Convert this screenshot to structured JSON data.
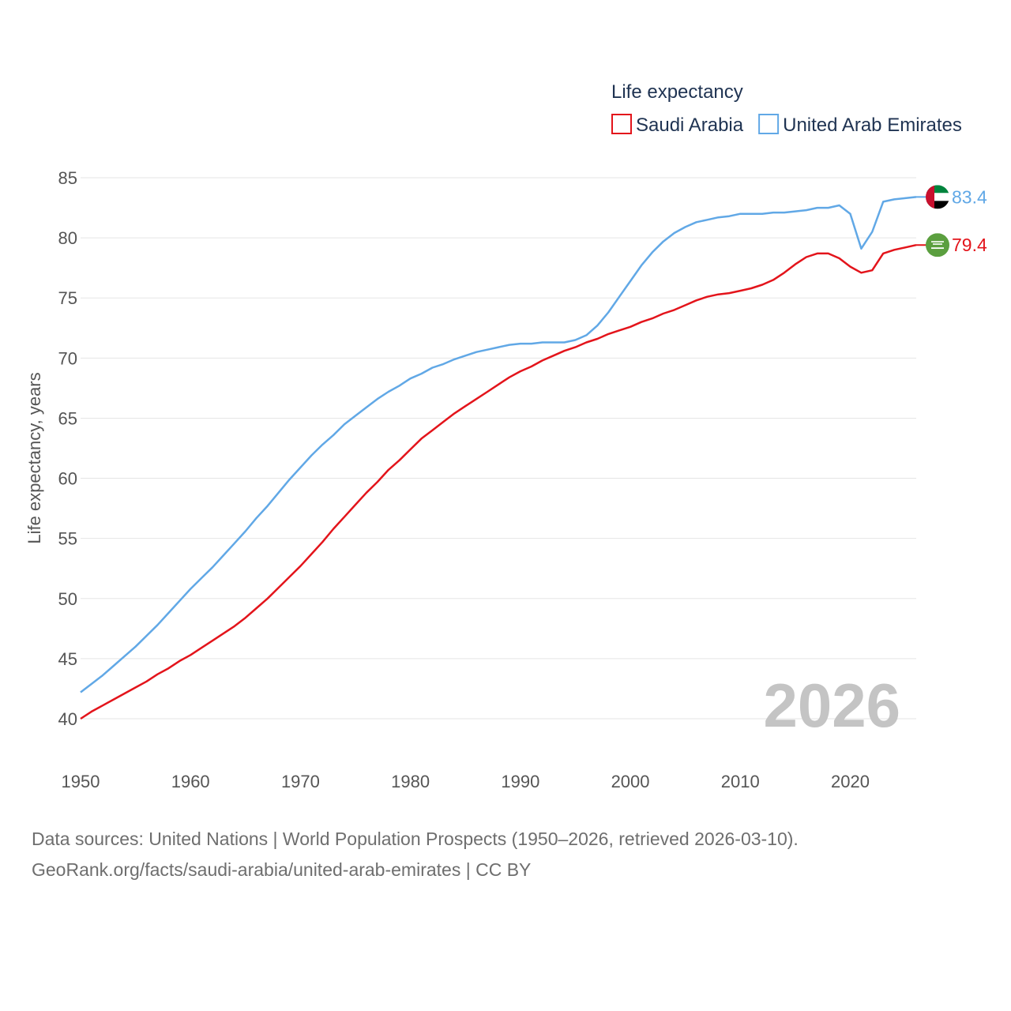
{
  "chart_data": {
    "type": "line",
    "title": "Life expectancy",
    "xlabel": "",
    "ylabel": "Life expectancy, years",
    "xlim": [
      1950,
      2026
    ],
    "ylim": [
      40,
      85
    ],
    "x_ticks": [
      "1950",
      "1960",
      "1970",
      "1980",
      "1990",
      "2000",
      "2010",
      "2020"
    ],
    "y_ticks": [
      "40",
      "45",
      "50",
      "55",
      "60",
      "65",
      "70",
      "75",
      "80",
      "85"
    ],
    "current_year": "2026",
    "legend_position": "top-right",
    "series": [
      {
        "name": "Saudi Arabia",
        "color": "#e3141b",
        "end_label": "79.4",
        "flag_icon": "saudi-arabia-flag-icon",
        "x": [
          1950,
          1951,
          1952,
          1953,
          1954,
          1955,
          1956,
          1957,
          1958,
          1959,
          1960,
          1961,
          1962,
          1963,
          1964,
          1965,
          1966,
          1967,
          1968,
          1969,
          1970,
          1971,
          1972,
          1973,
          1974,
          1975,
          1976,
          1977,
          1978,
          1979,
          1980,
          1981,
          1982,
          1983,
          1984,
          1985,
          1986,
          1987,
          1988,
          1989,
          1990,
          1991,
          1992,
          1993,
          1994,
          1995,
          1996,
          1997,
          1998,
          1999,
          2000,
          2001,
          2002,
          2003,
          2004,
          2005,
          2006,
          2007,
          2008,
          2009,
          2010,
          2011,
          2012,
          2013,
          2014,
          2015,
          2016,
          2017,
          2018,
          2019,
          2020,
          2021,
          2022,
          2023,
          2024,
          2025,
          2026
        ],
        "values": [
          40.0,
          40.6,
          41.1,
          41.6,
          42.1,
          42.6,
          43.1,
          43.7,
          44.2,
          44.8,
          45.3,
          45.9,
          46.5,
          47.1,
          47.7,
          48.4,
          49.2,
          50.0,
          50.9,
          51.8,
          52.7,
          53.7,
          54.7,
          55.8,
          56.8,
          57.8,
          58.8,
          59.7,
          60.7,
          61.5,
          62.4,
          63.3,
          64.0,
          64.7,
          65.4,
          66.0,
          66.6,
          67.2,
          67.8,
          68.4,
          68.9,
          69.3,
          69.8,
          70.2,
          70.6,
          70.9,
          71.3,
          71.6,
          72.0,
          72.3,
          72.6,
          73.0,
          73.3,
          73.7,
          74.0,
          74.4,
          74.8,
          75.1,
          75.3,
          75.4,
          75.6,
          75.8,
          76.1,
          76.5,
          77.1,
          77.8,
          78.4,
          78.7,
          78.7,
          78.3,
          77.6,
          77.1,
          77.3,
          78.7,
          79.0,
          79.2,
          79.4
        ]
      },
      {
        "name": "United Arab Emirates",
        "color": "#61a8e6",
        "end_label": "83.4",
        "flag_icon": "uae-flag-icon",
        "x": [
          1950,
          1951,
          1952,
          1953,
          1954,
          1955,
          1956,
          1957,
          1958,
          1959,
          1960,
          1961,
          1962,
          1963,
          1964,
          1965,
          1966,
          1967,
          1968,
          1969,
          1970,
          1971,
          1972,
          1973,
          1974,
          1975,
          1976,
          1977,
          1978,
          1979,
          1980,
          1981,
          1982,
          1983,
          1984,
          1985,
          1986,
          1987,
          1988,
          1989,
          1990,
          1991,
          1992,
          1993,
          1994,
          1995,
          1996,
          1997,
          1998,
          1999,
          2000,
          2001,
          2002,
          2003,
          2004,
          2005,
          2006,
          2007,
          2008,
          2009,
          2010,
          2011,
          2012,
          2013,
          2014,
          2015,
          2016,
          2017,
          2018,
          2019,
          2020,
          2021,
          2022,
          2023,
          2024,
          2025,
          2026
        ],
        "values": [
          42.2,
          42.9,
          43.6,
          44.4,
          45.2,
          46.0,
          46.9,
          47.8,
          48.8,
          49.8,
          50.8,
          51.7,
          52.6,
          53.6,
          54.6,
          55.6,
          56.7,
          57.7,
          58.8,
          59.9,
          60.9,
          61.9,
          62.8,
          63.6,
          64.5,
          65.2,
          65.9,
          66.6,
          67.2,
          67.7,
          68.3,
          68.7,
          69.2,
          69.5,
          69.9,
          70.2,
          70.5,
          70.7,
          70.9,
          71.1,
          71.2,
          71.2,
          71.3,
          71.3,
          71.3,
          71.5,
          71.9,
          72.7,
          73.8,
          75.1,
          76.4,
          77.7,
          78.8,
          79.7,
          80.4,
          80.9,
          81.3,
          81.5,
          81.7,
          81.8,
          82.0,
          82.0,
          82.0,
          82.1,
          82.1,
          82.2,
          82.3,
          82.5,
          82.5,
          82.7,
          82.0,
          79.1,
          80.5,
          83.0,
          83.2,
          83.3,
          83.4
        ]
      }
    ]
  },
  "source": {
    "line1": "Data sources: United Nations | World Population Prospects (1950–2026, retrieved 2026-03-10).",
    "line2": "GeoRank.org/facts/saudi-arabia/united-arab-emirates | CC BY"
  }
}
